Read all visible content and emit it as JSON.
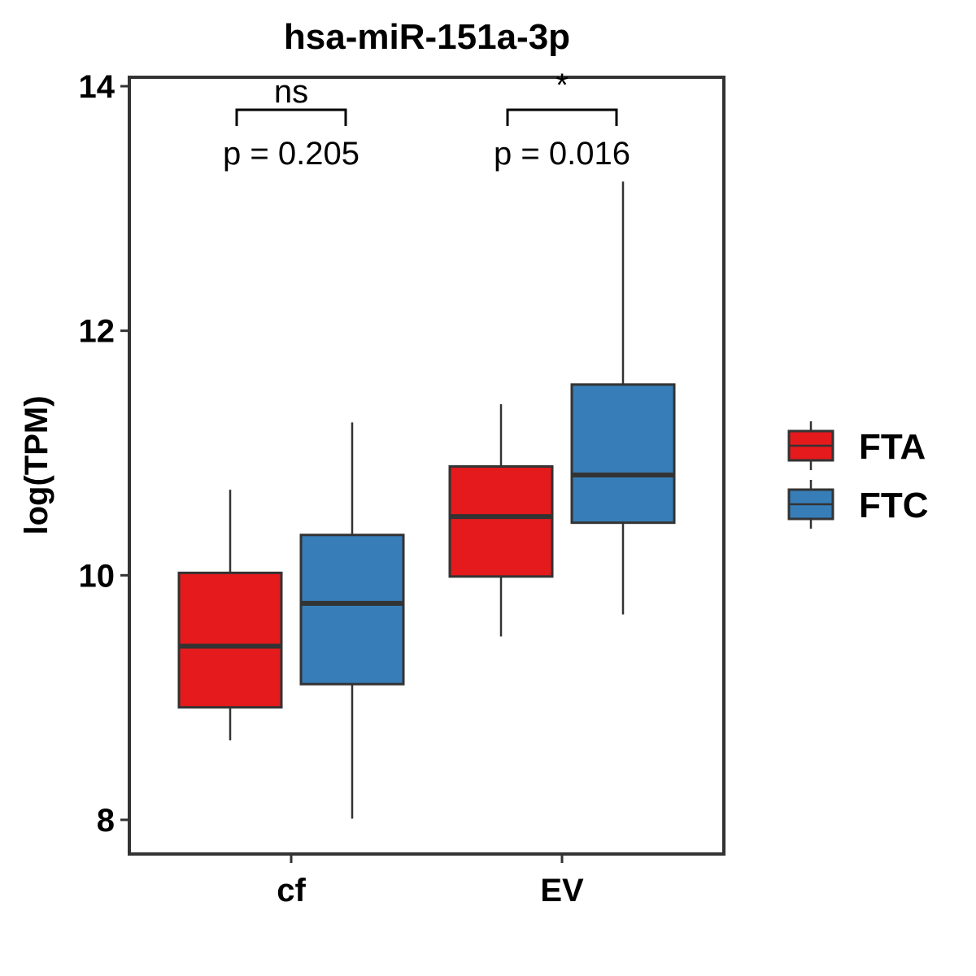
{
  "chart_data": {
    "type": "boxplot",
    "title": "hsa-miR-151a-3p",
    "xlabel": "",
    "ylabel": "log(TPM)",
    "ylim": [
      7.75,
      14.1
    ],
    "yticks": [
      8,
      10,
      12,
      14
    ],
    "categories": [
      "cf",
      "EV"
    ],
    "series": [
      {
        "name": "FTA",
        "color": "#E41A1C",
        "boxes": [
          {
            "category": "cf",
            "min": 8.65,
            "q1": 8.92,
            "median": 9.42,
            "q3": 10.02,
            "max": 10.7
          },
          {
            "category": "EV",
            "min": 9.5,
            "q1": 9.99,
            "median": 10.48,
            "q3": 10.89,
            "max": 11.4
          }
        ]
      },
      {
        "name": "FTC",
        "color": "#377EB8",
        "boxes": [
          {
            "category": "cf",
            "min": 8.01,
            "q1": 9.11,
            "median": 9.77,
            "q3": 10.33,
            "max": 11.25
          },
          {
            "category": "EV",
            "min": 9.68,
            "q1": 10.43,
            "median": 10.82,
            "q3": 11.56,
            "max": 13.22
          }
        ]
      }
    ],
    "annotations": [
      {
        "category": "cf",
        "significance": "ns",
        "pvalue": "p = 0.205"
      },
      {
        "category": "EV",
        "significance": "*",
        "pvalue": "p = 0.016"
      }
    ],
    "legend": {
      "position": "right",
      "entries": [
        "FTA",
        "FTC"
      ]
    },
    "grid": false
  }
}
